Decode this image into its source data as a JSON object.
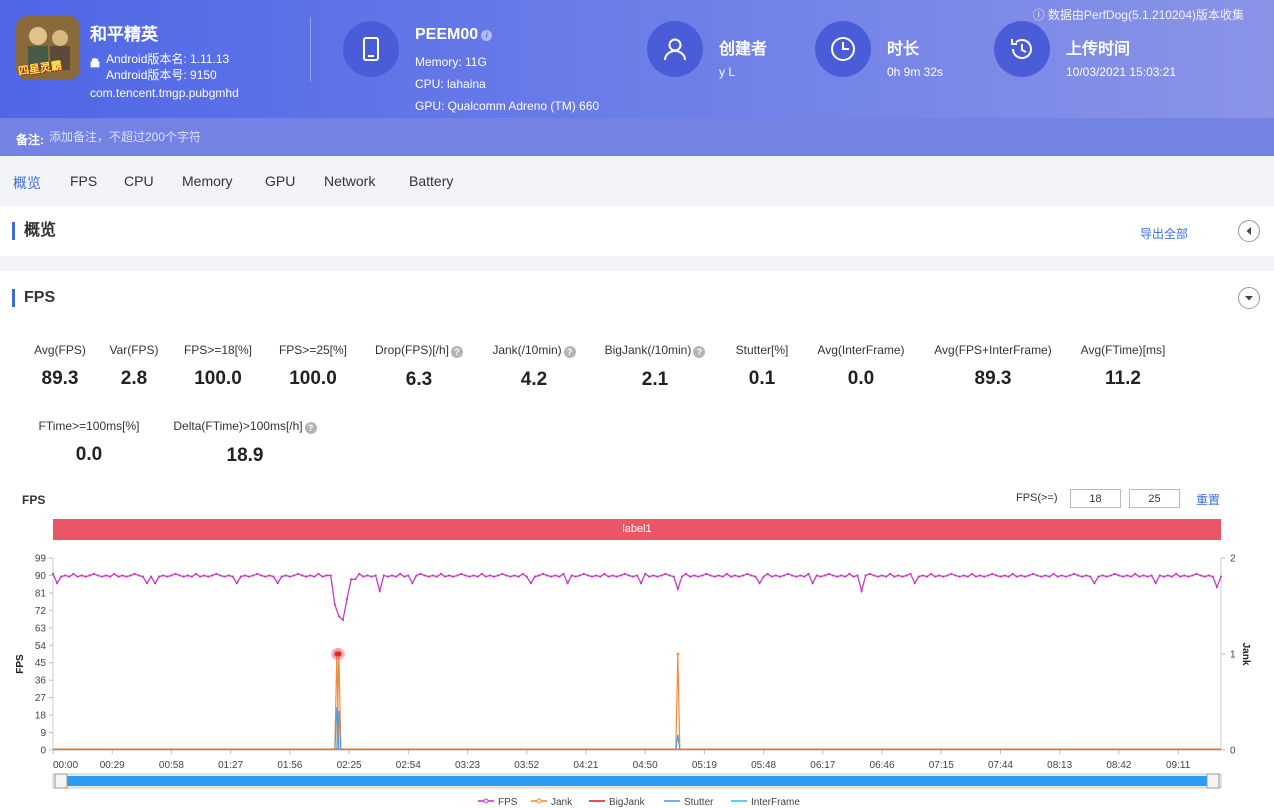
{
  "header": {
    "app": {
      "name": "和平精英",
      "icon_badge": "四星灵霸",
      "version_name": "Android版本名: 1.11.13",
      "version_code": "Android版本号: 9150",
      "package": "com.tencent.tmgp.pubgmhd"
    },
    "device": {
      "model": "PEEM00",
      "memory": "Memory: 11G",
      "cpu": "CPU: lahaina",
      "gpu": "GPU: Qualcomm Adreno (TM) 660",
      "icon": "tablet-icon"
    },
    "creator": {
      "title": "创建者",
      "value": "y L",
      "icon": "user-icon"
    },
    "duration": {
      "title": "时长",
      "value": "0h 9m 32s",
      "icon": "clock-icon"
    },
    "upload": {
      "title": "上传时间",
      "value": "10/03/2021 15:03:21",
      "icon": "history-icon"
    },
    "source_note": "数据由PerfDog(5.1.210204)版本收集"
  },
  "remark": {
    "label": "备注:",
    "placeholder": "添加备注，不超过200个字符"
  },
  "tabs": [
    {
      "label": "概览",
      "active": true
    },
    {
      "label": "FPS"
    },
    {
      "label": "CPU"
    },
    {
      "label": "Memory"
    },
    {
      "label": "GPU"
    },
    {
      "label": "Network"
    },
    {
      "label": "Battery"
    }
  ],
  "overview": {
    "title": "概览",
    "export_label": "导出全部"
  },
  "fps_section": {
    "title": "FPS",
    "metrics": [
      {
        "label": "Avg(FPS)",
        "value": "89.3"
      },
      {
        "label": "Var(FPS)",
        "value": "2.8"
      },
      {
        "label": "FPS>=18[%]",
        "value": "100.0"
      },
      {
        "label": "FPS>=25[%]",
        "value": "100.0"
      },
      {
        "label": "Drop(FPS)[/h]",
        "value": "6.3",
        "help": true
      },
      {
        "label": "Jank(/10min)",
        "value": "4.2",
        "help": true
      },
      {
        "label": "BigJank(/10min)",
        "value": "2.1",
        "help": true
      },
      {
        "label": "Stutter[%]",
        "value": "0.1"
      },
      {
        "label": "Avg(InterFrame)",
        "value": "0.0"
      },
      {
        "label": "Avg(FPS+InterFrame)",
        "value": "89.3"
      },
      {
        "label": "Avg(FTime)[ms]",
        "value": "11.2"
      },
      {
        "label": "FTime>=100ms[%]",
        "value": "0.0"
      },
      {
        "label": "Delta(FTime)>100ms[/h]",
        "value": "18.9",
        "help": true
      }
    ],
    "chart_title": "FPS",
    "threshold_label": "FPS(>=)",
    "threshold_1": "18",
    "threshold_2": "25",
    "reset_label": "重置",
    "label_bar": "label1"
  },
  "chart_data": {
    "type": "line",
    "ylabel": "FPS",
    "y2label": "Jank",
    "ylim": [
      0,
      99
    ],
    "y_ticks": [
      "0",
      "9",
      "18",
      "27",
      "36",
      "45",
      "54",
      "63",
      "72",
      "81",
      "90",
      "99"
    ],
    "y2lim": [
      0,
      2
    ],
    "y2_ticks": [
      "0",
      "1",
      "2"
    ],
    "x_ticks": [
      "00:00",
      "00:29",
      "00:58",
      "01:27",
      "01:56",
      "02:25",
      "02:54",
      "03:23",
      "03:52",
      "04:21",
      "04:50",
      "05:19",
      "05:48",
      "06:17",
      "06:46",
      "07:15",
      "07:44",
      "08:13",
      "08:42",
      "09:11"
    ],
    "x_range_seconds": [
      0,
      572
    ],
    "legend": [
      "FPS",
      "Jank",
      "BigJank",
      "Stutter",
      "InterFrame"
    ],
    "colors": {
      "FPS": "#c33dc3",
      "Jank": "#f28a3c",
      "BigJank": "#e02424",
      "Stutter": "#5b9bd5",
      "InterFrame": "#36c0e8"
    },
    "series": [
      {
        "name": "FPS",
        "baseline": 90,
        "dips": [
          [
            2,
            86
          ],
          [
            21,
            86
          ],
          [
            46,
            86
          ],
          [
            50,
            86
          ],
          [
            65,
            86
          ],
          [
            90,
            86
          ],
          [
            110,
            86
          ],
          [
            135,
            84
          ],
          [
            140,
            82
          ],
          [
            148,
            88
          ],
          [
            160,
            82
          ],
          [
            176,
            86
          ],
          [
            191,
            86
          ],
          [
            234,
            86
          ],
          [
            252,
            86
          ],
          [
            288,
            86
          ],
          [
            346,
            86
          ],
          [
            372,
            86
          ],
          [
            396,
            82
          ],
          [
            422,
            86
          ],
          [
            445,
            86
          ],
          [
            479,
            86
          ],
          [
            510,
            86
          ],
          [
            540,
            86
          ],
          [
            570,
            84
          ],
          [
            306,
            83
          ]
        ],
        "drop": [
          [
            136,
            90
          ],
          [
            138,
            75
          ],
          [
            140,
            69
          ],
          [
            142,
            67
          ],
          [
            144,
            78
          ],
          [
            146,
            88
          ]
        ]
      },
      {
        "name": "Jank",
        "y2_spikes": [
          [
            139,
            1
          ],
          [
            140,
            1
          ],
          [
            306,
            1
          ]
        ]
      },
      {
        "name": "Stutter",
        "fps_scale_spikes": [
          [
            139,
            22
          ],
          [
            140,
            20
          ],
          [
            306,
            8
          ]
        ]
      }
    ]
  },
  "scrollbar": {
    "color": "#2d9cf0"
  }
}
